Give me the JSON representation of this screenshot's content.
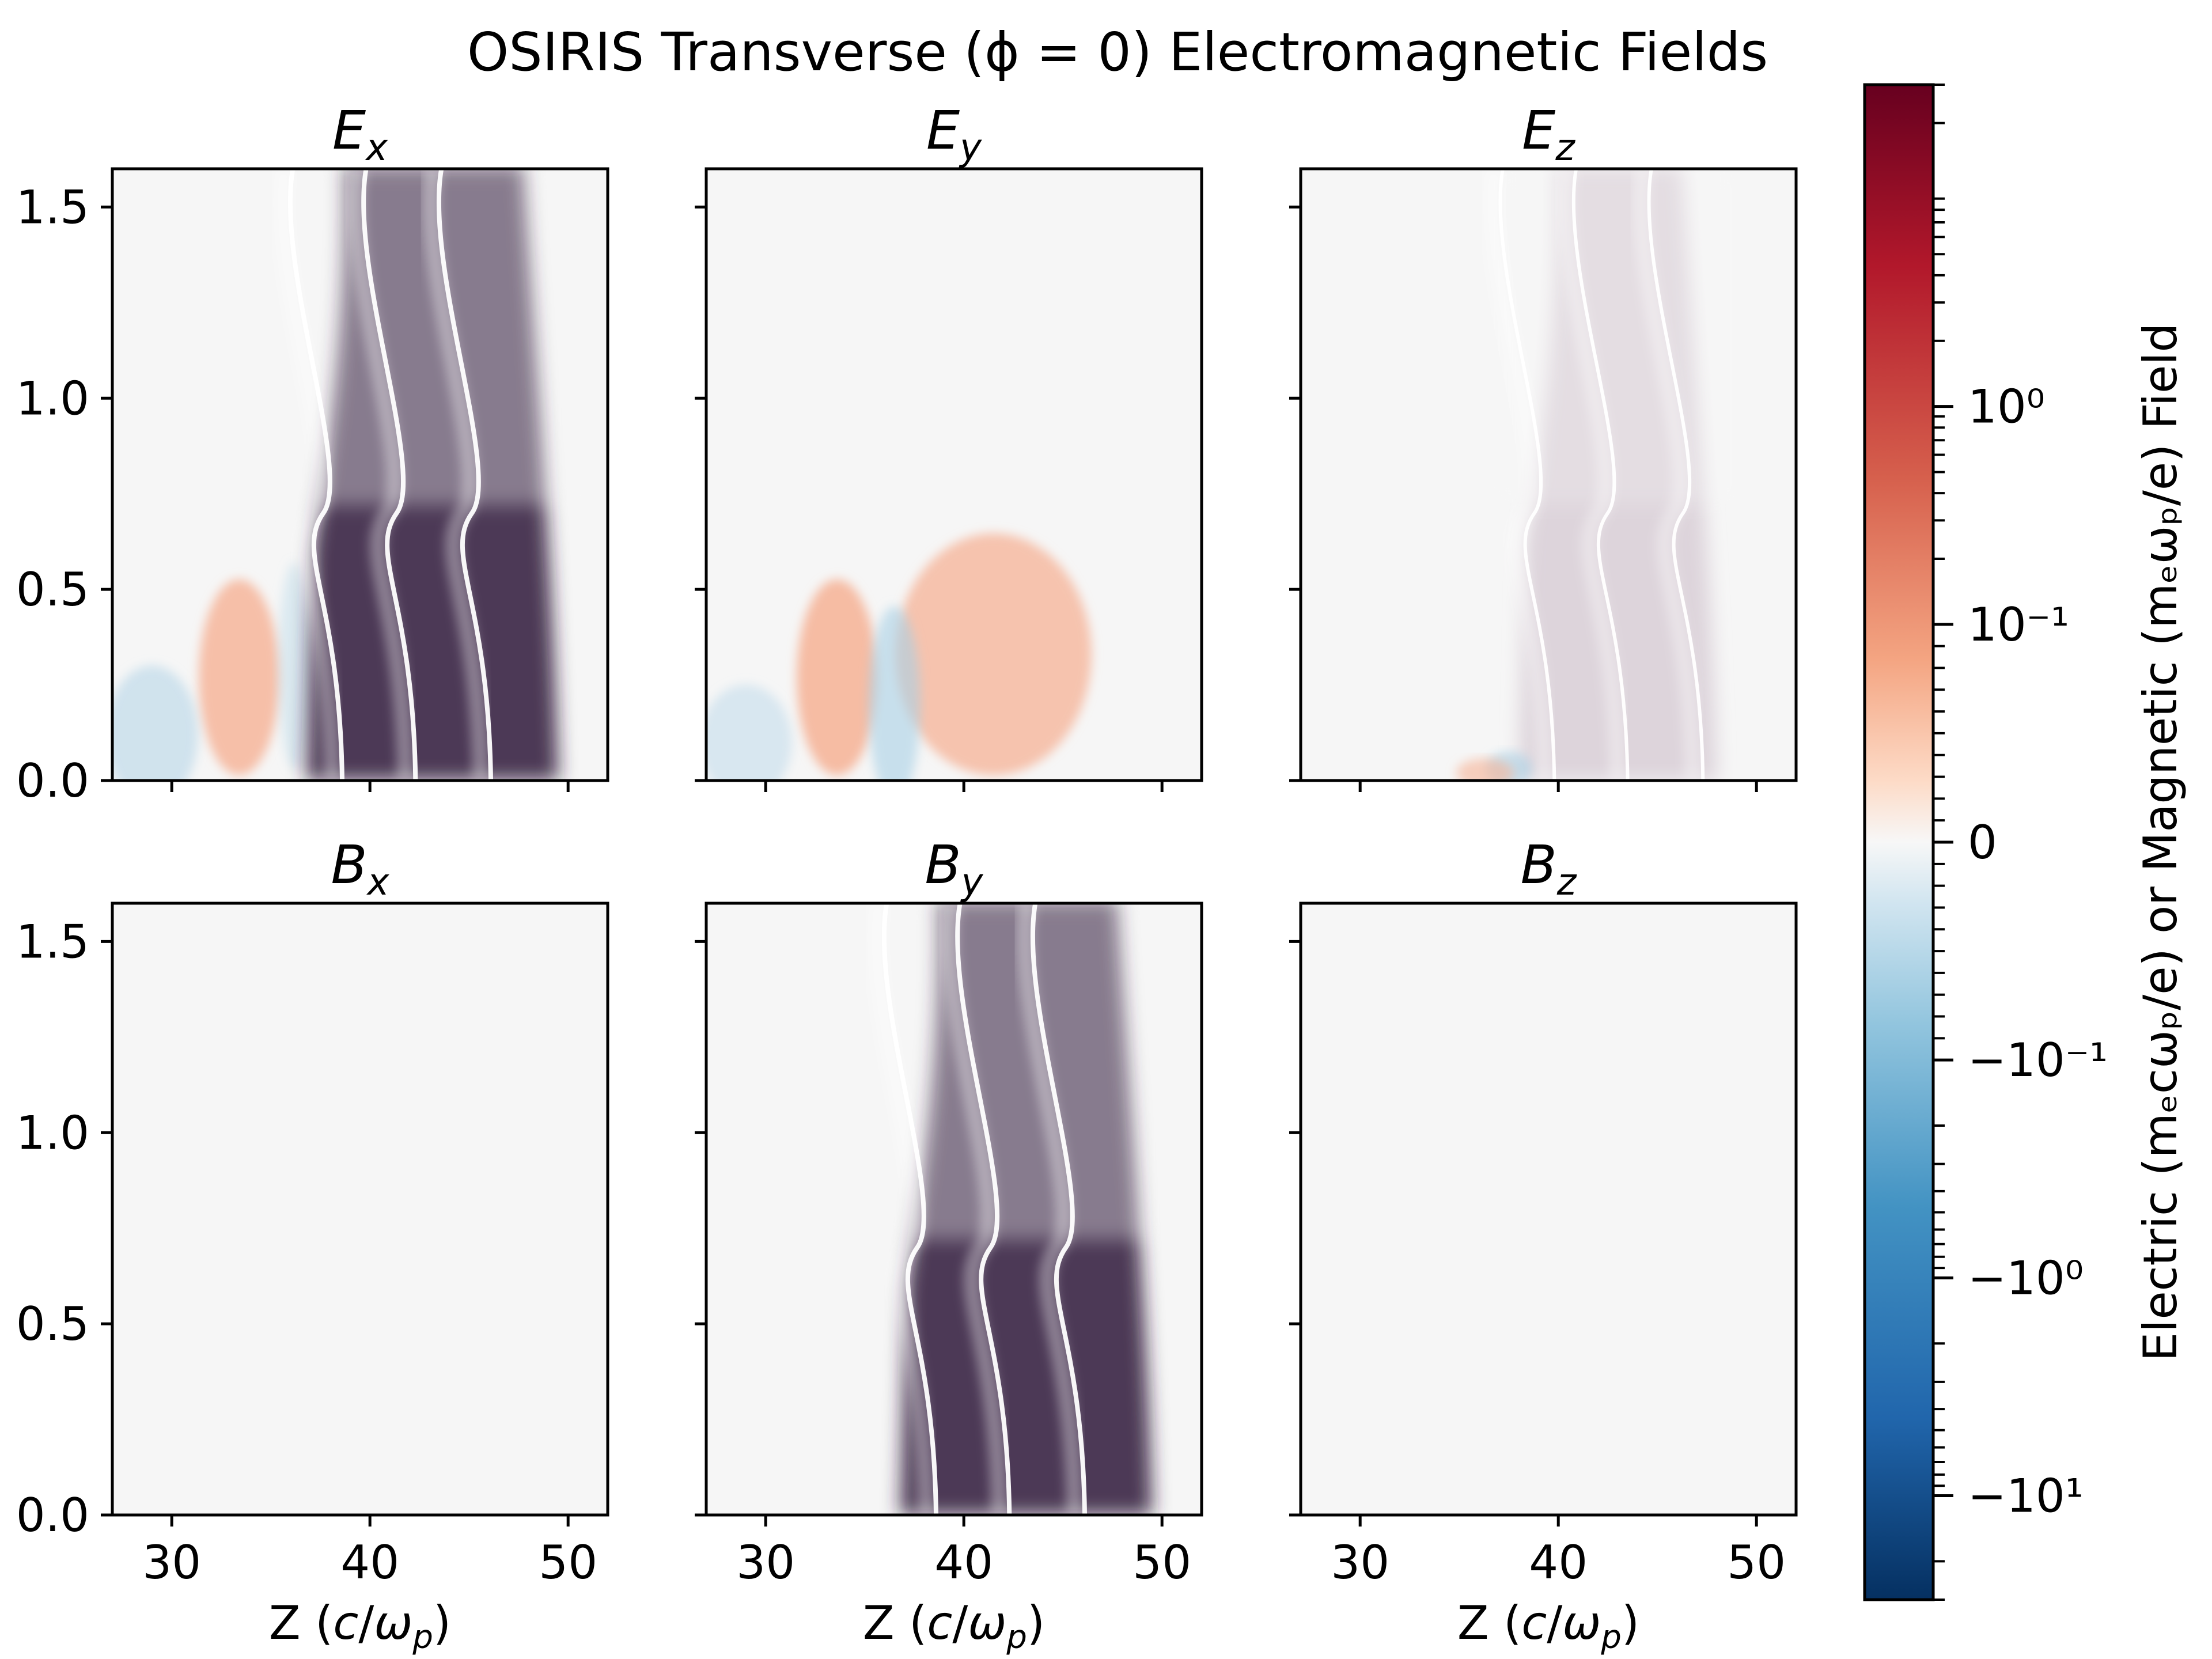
{
  "chart_data": {
    "type": "heatmap",
    "title": "OSIRIS Transverse (ϕ = 0) Electromagnetic Fields",
    "colorbar": {
      "label": "Electric (mₑcωₚ/e) or Magnetic (mₑωₚ/e) Field",
      "label_plain": "Electric (mecωp/e) or Magnetic (meωp/e) Field",
      "scale": "symlog",
      "colormap": "RdBu_r",
      "tick_labels": [
        "10⁰",
        "10⁻¹",
        "0",
        "−10⁻¹",
        "−10⁰",
        "−10¹"
      ],
      "tick_values": [
        1,
        0.1,
        0,
        -0.1,
        -1,
        -10
      ],
      "range": [
        -30,
        30
      ]
    },
    "x_axis": {
      "label": "Z (c/ωp)",
      "ticks": [
        "30",
        "40",
        "50"
      ],
      "tick_values": [
        30,
        40,
        50
      ],
      "range": [
        27,
        52
      ]
    },
    "y_axis": {
      "ticks": [
        "0.0",
        "0.5",
        "1.0",
        "1.5"
      ],
      "tick_values": [
        0,
        0.5,
        1.0,
        1.5
      ],
      "range": [
        0,
        1.6
      ]
    },
    "panels": [
      {
        "id": "Ex",
        "title": "Ex",
        "base": "E",
        "sub": "x",
        "content": "strong",
        "wake_z": [
          36.8,
          49.5
        ]
      },
      {
        "id": "Ey",
        "title": "Ey",
        "base": "E",
        "sub": "y",
        "content": "ey",
        "wake_z": [
          38,
          48
        ]
      },
      {
        "id": "Ez",
        "title": "Ez",
        "base": "E",
        "sub": "z",
        "content": "weak",
        "wake_z": [
          38,
          48
        ]
      },
      {
        "id": "Bx",
        "title": "Bx",
        "base": "B",
        "sub": "x",
        "content": "empty"
      },
      {
        "id": "By",
        "title": "By",
        "base": "B",
        "sub": "y",
        "content": "strong",
        "wake_z": [
          36.8,
          49.5
        ]
      },
      {
        "id": "Bz",
        "title": "Bz",
        "base": "B",
        "sub": "z",
        "content": "empty"
      }
    ],
    "colors": {
      "wake_dark": "#2d1538",
      "wake_mid": "#6a3f6b",
      "wake_light": "#c8b8c4",
      "background": "#f6f6f6",
      "positive_weak": "#f6b295",
      "negative_weak": "#a9d0e6"
    },
    "legend": "colorbar-right",
    "grid": false
  }
}
